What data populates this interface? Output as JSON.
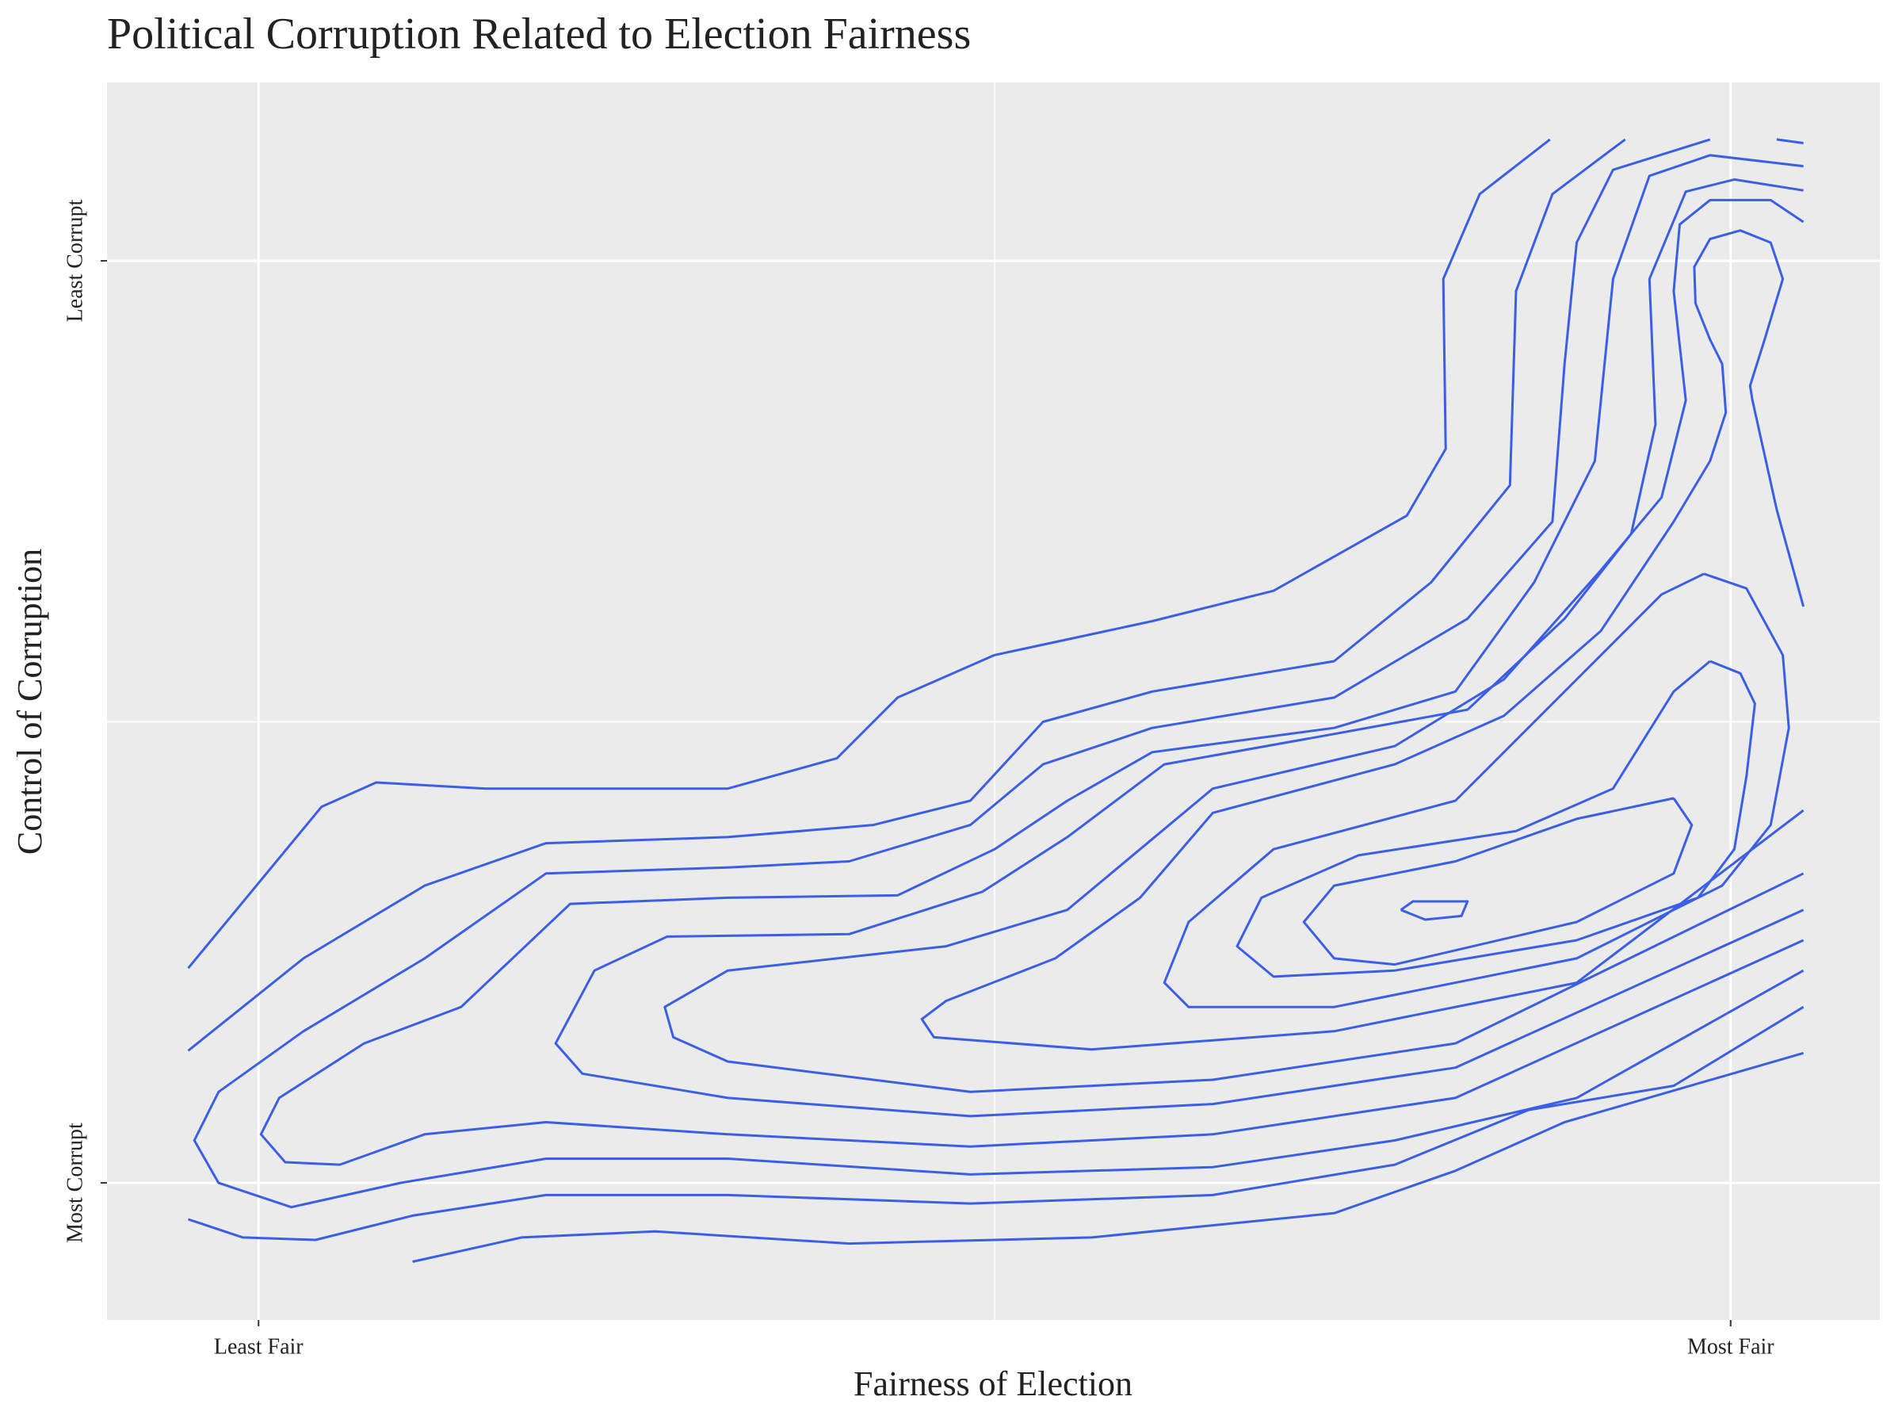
{
  "chart_data": {
    "type": "contour",
    "title": "Political Corruption Related to Election Fairness",
    "x_label": "Fairness of Election",
    "y_label": "Control of Corruption",
    "color": "#3a5fe6",
    "xlim": [
      -125,
      1337
    ],
    "ylim": [
      -113,
      907
    ],
    "xticks": [
      {
        "value": 0,
        "label": "Least Fair"
      },
      {
        "value": 1214,
        "label": "Most Fair"
      }
    ],
    "yticks": [
      {
        "value": 0,
        "label": "Most Corrupt"
      },
      {
        "value": 760,
        "label": "Least Corrupt"
      }
    ],
    "minor_xticks": [
      607
    ],
    "minor_yticks": [
      380
    ],
    "grid": true,
    "series": [
      {
        "x": [
          -58,
          52,
          97,
          187,
          387,
          477,
          527,
          607,
          737,
          837,
          947,
          979,
          977,
          1007,
          1065
        ],
        "y": [
          177,
          310,
          330,
          325,
          325,
          350,
          400,
          435,
          463,
          488,
          550,
          605,
          745,
          815,
          860
        ]
      },
      {
        "x": [
          -58,
          37,
          137,
          237,
          387,
          507,
          587,
          647,
          737,
          887,
          967,
          1032,
          1037,
          1067,
          1127
        ],
        "y": [
          109,
          185,
          245,
          280,
          285,
          295,
          315,
          380,
          405,
          430,
          495,
          575,
          735,
          815,
          860
        ]
      },
      {
        "x": [
          1197,
          1117,
          1087,
          1077,
          1067,
          997,
          887,
          737,
          647,
          587,
          487,
          387,
          237,
          137,
          37,
          -33,
          -53,
          -33,
          27,
          117,
          237,
          387,
          587,
          787,
          937,
          1087,
          1274
        ],
        "y": [
          860,
          835,
          775,
          675,
          545,
          465,
          400,
          375,
          345,
          295,
          265,
          260,
          255,
          185,
          125,
          75,
          35,
          0,
          -20,
          0,
          20,
          20,
          7,
          13,
          35,
          70,
          175
        ]
      },
      {
        "x": [
          1274,
          1197,
          1147,
          1117,
          1102,
          1052,
          987,
          887,
          737,
          667,
          607,
          527,
          387,
          257,
          167,
          87,
          17,
          2,
          22,
          67,
          137,
          237,
          387,
          587,
          787,
          987,
          1274
        ],
        "y": [
          838,
          847,
          830,
          745,
          595,
          495,
          405,
          375,
          355,
          315,
          275,
          237,
          235,
          230,
          145,
          115,
          70,
          40,
          17,
          15,
          40,
          50,
          40,
          30,
          40,
          70,
          200
        ]
      },
      {
        "x": [
          1274,
          1217,
          1177,
          1147,
          1152,
          1132,
          1077,
          997,
          887,
          747,
          667,
          597,
          487,
          337,
          277,
          245,
          267,
          387,
          587,
          787,
          987,
          1274
        ],
        "y": [
          818,
          827,
          817,
          745,
          625,
          535,
          465,
          390,
          370,
          345,
          285,
          240,
          205,
          203,
          175,
          115,
          90,
          70,
          55,
          65,
          95,
          225
        ]
      },
      {
        "x": [
          1274,
          1247,
          1197,
          1172,
          1167,
          1177,
          1157,
          1107,
          1027,
          937,
          787,
          727,
          667,
          567,
          387,
          335,
          342,
          387,
          587,
          787,
          987,
          1274
        ],
        "y": [
          792,
          810,
          810,
          790,
          735,
          645,
          565,
          505,
          415,
          360,
          325,
          275,
          225,
          195,
          175,
          145,
          120,
          100,
          75,
          85,
          115,
          255
        ]
      },
      {
        "x": [
          1274,
          1252,
          1232,
          1230,
          1242,
          1257,
          1247,
          1222,
          1197,
          1184,
          1185,
          1197,
          1207,
          1210,
          1197,
          1167,
          1107,
          1027,
          937,
          787,
          727,
          657,
          567,
          547,
          557,
          687,
          887,
          1087,
          1274
        ],
        "y": [
          475,
          555,
          645,
          657,
          695,
          745,
          775,
          785,
          778,
          755,
          725,
          695,
          675,
          635,
          595,
          545,
          455,
          385,
          345,
          305,
          235,
          185,
          150,
          135,
          120,
          110,
          125,
          165,
          307
        ]
      },
      {
        "x": [
          1192,
          1227,
          1257,
          1262,
          1247,
          1207,
          1087,
          887,
          767,
          747,
          767,
          837,
          987,
          1087,
          1157,
          1192
        ],
        "y": [
          502,
          490,
          435,
          375,
          295,
          245,
          185,
          145,
          145,
          165,
          215,
          275,
          315,
          415,
          485,
          502
        ]
      },
      {
        "x": [
          1197,
          1222,
          1234,
          1227,
          1217,
          1187,
          1087,
          937,
          837,
          807,
          827,
          907,
          1037,
          1117,
          1167,
          1197
        ],
        "y": [
          430,
          420,
          395,
          335,
          275,
          235,
          200,
          175,
          170,
          195,
          235,
          270,
          290,
          325,
          405,
          430
        ]
      },
      {
        "x": [
          1167,
          1182,
          1167,
          1087,
          937,
          887,
          862,
          887,
          987,
          1087,
          1167
        ],
        "y": [
          317,
          295,
          255,
          215,
          180,
          185,
          215,
          245,
          265,
          300,
          317
        ]
      },
      {
        "x": [
          942,
          952,
          997,
          992,
          962,
          942
        ],
        "y": [
          225,
          232,
          232,
          220,
          217,
          225
        ]
      },
      {
        "x": [
          -58,
          -13,
          47,
          127,
          237,
          387,
          587,
          787,
          937,
          1047,
          1167,
          1274
        ],
        "y": [
          -30,
          -45,
          -47,
          -27,
          -10,
          -10,
          -17,
          -10,
          15,
          60,
          80,
          145
        ]
      },
      {
        "x": [
          127,
          217,
          327,
          487,
          687,
          887,
          987,
          1077,
          1274
        ],
        "y": [
          -65,
          -45,
          -40,
          -50,
          -45,
          -25,
          10,
          50,
          107
        ]
      },
      {
        "x": [
          1252,
          1274
        ],
        "y": [
          860,
          857
        ]
      }
    ]
  }
}
